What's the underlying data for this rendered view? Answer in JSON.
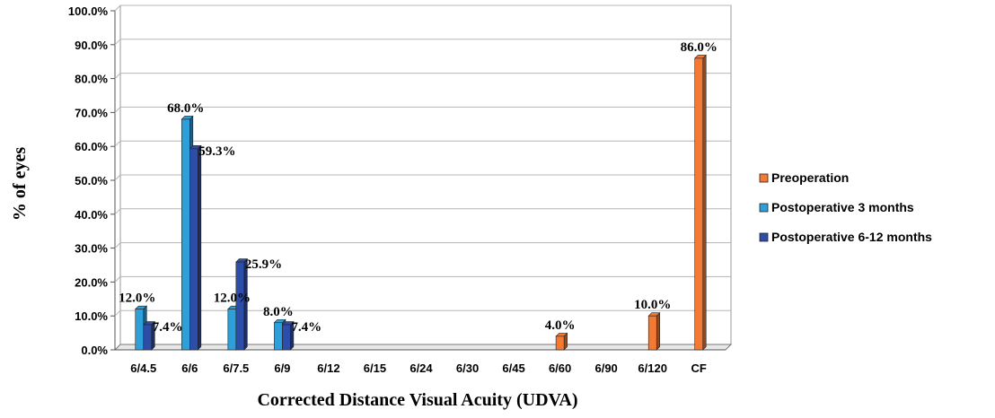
{
  "chart_data": {
    "type": "bar",
    "title": "",
    "xlabel": "Corrected Distance Visual Acuity (UDVA)",
    "ylabel": "% of eyes",
    "ylim": [
      0,
      100
    ],
    "yticks": [
      "0.0%",
      "10.0%",
      "20.0%",
      "30.0%",
      "40.0%",
      "50.0%",
      "60.0%",
      "70.0%",
      "80.0%",
      "90.0%",
      "100.0%"
    ],
    "grid": true,
    "legend_position": "right",
    "categories": [
      "6/4.5",
      "6/6",
      "6/7.5",
      "6/9",
      "6/12",
      "6/15",
      "6/24",
      "6/30",
      "6/45",
      "6/60",
      "6/90",
      "6/120",
      "CF"
    ],
    "series": [
      {
        "name": "Preoperation",
        "color": "#F47A33",
        "values": [
          0,
          0,
          0,
          0,
          0,
          0,
          0,
          0,
          0,
          4.0,
          0,
          10.0,
          86.0
        ],
        "labels": [
          null,
          null,
          null,
          null,
          null,
          null,
          null,
          null,
          null,
          "4.0%",
          null,
          "10.0%",
          "86.0%"
        ]
      },
      {
        "name": "Postoperative 3 months",
        "color": "#2E9FD8",
        "values": [
          12.0,
          68.0,
          12.0,
          8.0,
          0,
          0,
          0,
          0,
          0,
          0,
          0,
          0,
          0
        ],
        "labels": [
          "12.0%",
          "68.0%",
          "12.0%",
          "8.0%",
          null,
          null,
          null,
          null,
          null,
          null,
          null,
          null,
          null
        ]
      },
      {
        "name": "Postoperative 6-12 months",
        "color": "#2D4EA8",
        "values": [
          7.4,
          59.3,
          25.9,
          7.4,
          0,
          0,
          0,
          0,
          0,
          0,
          0,
          0,
          0
        ],
        "labels": [
          "7.4%",
          "59.3%",
          "25.9%",
          "7.4%",
          null,
          null,
          null,
          null,
          null,
          null,
          null,
          null,
          null
        ]
      }
    ]
  }
}
